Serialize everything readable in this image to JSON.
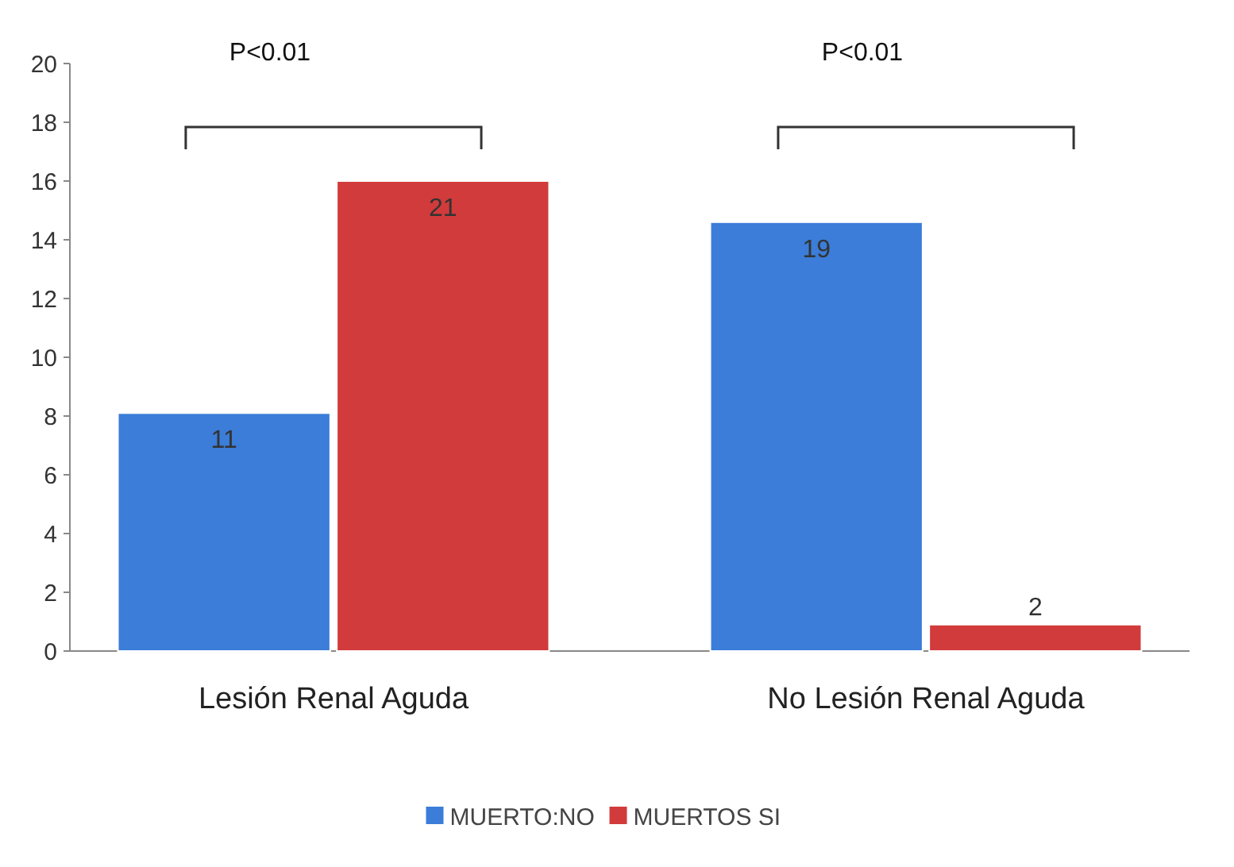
{
  "chart_data": {
    "type": "bar",
    "categories": [
      "Lesión Renal Aguda",
      "No Lesión Renal Aguda"
    ],
    "series": [
      {
        "name": "MUERTO:NO",
        "color": "#3b7dd8",
        "values": [
          8.1,
          14.6
        ]
      },
      {
        "name": "MUERTOS SI",
        "color": "#d23b3b",
        "values": [
          16,
          0.9
        ]
      }
    ],
    "ylim": [
      0,
      20
    ],
    "yticks": [
      0,
      2,
      4,
      6,
      8,
      10,
      12,
      14,
      16,
      18,
      20
    ],
    "grid": false,
    "legend": "bottom",
    "annotations": [
      "P<0.01",
      "P<0.01",
      "11",
      "21",
      "19",
      "2"
    ]
  }
}
